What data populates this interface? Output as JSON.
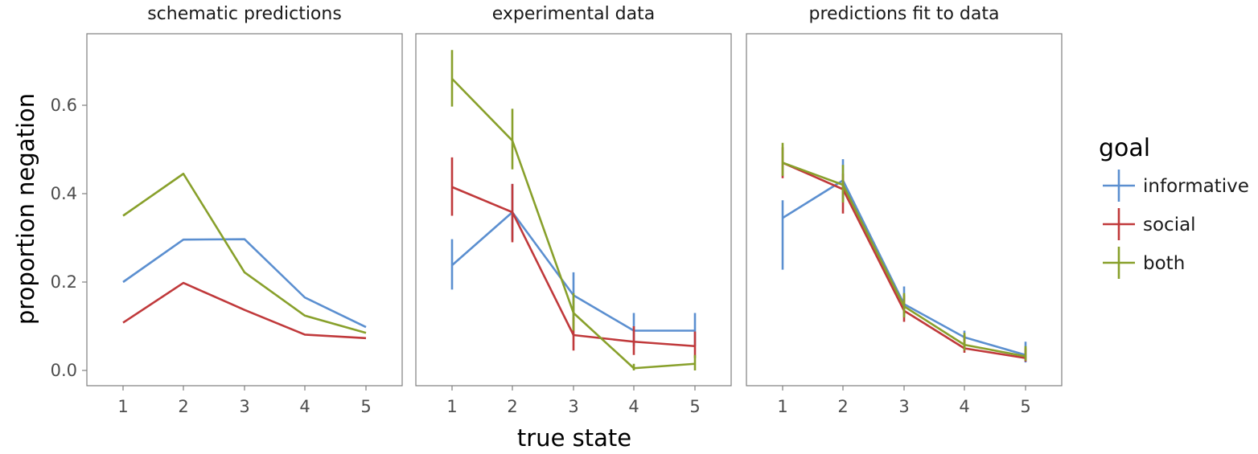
{
  "chart_data": {
    "type": "line",
    "xlabel": "true state",
    "ylabel": "proportion negation",
    "x": [
      1,
      2,
      3,
      4,
      5
    ],
    "ylim": [
      -0.03,
      0.75
    ],
    "y_ticks": [
      0.0,
      0.2,
      0.4,
      0.6
    ],
    "y_tick_labels": [
      "0.0",
      "0.2",
      "0.4",
      "0.6"
    ],
    "x_tick_labels": [
      "1",
      "2",
      "3",
      "4",
      "5"
    ],
    "grid": false,
    "legend": {
      "title": "goal",
      "placement": "right",
      "entries": [
        {
          "name": "informative",
          "color": "#5b8fd0"
        },
        {
          "name": "social",
          "color": "#c0393b"
        },
        {
          "name": "both",
          "color": "#88a02b"
        }
      ]
    },
    "panels": [
      {
        "title": "schematic predictions",
        "series": [
          {
            "name": "informative",
            "values": [
              0.2,
              0.296,
              0.297,
              0.165,
              0.098
            ]
          },
          {
            "name": "social",
            "values": [
              0.108,
              0.198,
              0.137,
              0.081,
              0.073
            ]
          },
          {
            "name": "both",
            "values": [
              0.35,
              0.445,
              0.222,
              0.124,
              0.085
            ]
          }
        ]
      },
      {
        "title": "experimental data",
        "series": [
          {
            "name": "informative",
            "values": [
              0.238,
              0.358,
              0.17,
              0.09,
              0.09
            ],
            "err_low": [
              0.183,
              0.295,
              0.12,
              0.055,
              0.055
            ],
            "err_high": [
              0.297,
              0.422,
              0.222,
              0.13,
              0.13
            ]
          },
          {
            "name": "social",
            "values": [
              0.415,
              0.358,
              0.08,
              0.065,
              0.055
            ],
            "err_low": [
              0.35,
              0.29,
              0.045,
              0.035,
              0.028
            ],
            "err_high": [
              0.482,
              0.422,
              0.12,
              0.1,
              0.088
            ]
          },
          {
            "name": "both",
            "values": [
              0.66,
              0.52,
              0.13,
              0.005,
              0.015
            ],
            "err_low": [
              0.597,
              0.455,
              0.09,
              0.0,
              0.0
            ],
            "err_high": [
              0.725,
              0.592,
              0.175,
              0.015,
              0.035
            ]
          }
        ]
      },
      {
        "title": "predictions fit to data",
        "series": [
          {
            "name": "informative",
            "values": [
              0.345,
              0.43,
              0.15,
              0.075,
              0.035
            ],
            "err_low": [
              0.228,
              0.388,
              0.12,
              0.055,
              0.018
            ],
            "err_high": [
              0.385,
              0.478,
              0.19,
              0.09,
              0.065
            ]
          },
          {
            "name": "social",
            "values": [
              0.47,
              0.41,
              0.135,
              0.05,
              0.028
            ],
            "err_low": [
              0.435,
              0.355,
              0.11,
              0.04,
              0.02
            ],
            "err_high": [
              0.505,
              0.445,
              0.17,
              0.08,
              0.05
            ]
          },
          {
            "name": "both",
            "values": [
              0.47,
              0.42,
              0.145,
              0.058,
              0.032
            ],
            "err_low": [
              0.44,
              0.38,
              0.12,
              0.045,
              0.022
            ],
            "err_high": [
              0.515,
              0.465,
              0.175,
              0.085,
              0.055
            ]
          }
        ]
      }
    ]
  }
}
